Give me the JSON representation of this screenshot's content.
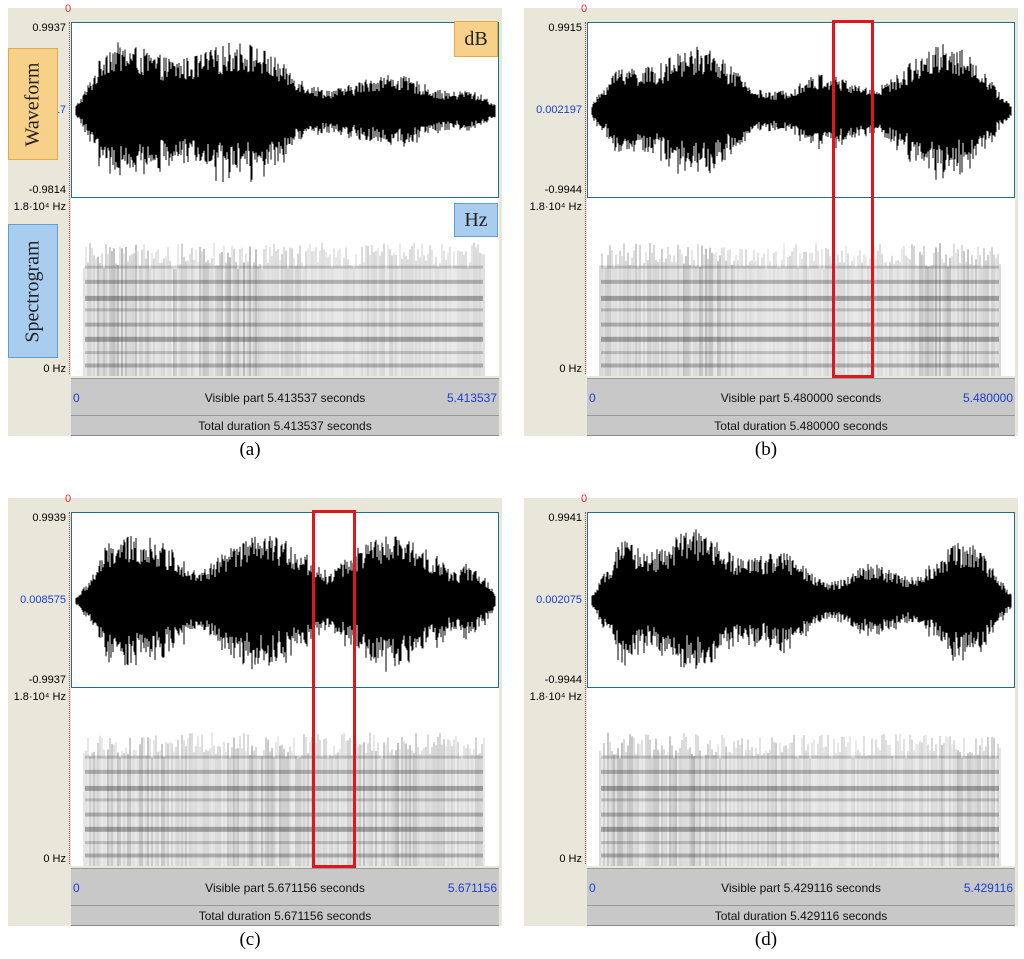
{
  "panels": {
    "a": {
      "caption": "(a)",
      "zero_marker": "0",
      "wave_max": "0.9937",
      "wave_mid": "17",
      "wave_min": "-0.9814",
      "freq_max": "1.8·10⁴ Hz",
      "freq_min": "0 Hz",
      "time_start": "0",
      "time_end": "5.413537",
      "visible_part": "Visible part 5.413537 seconds",
      "total_duration": "Total duration 5.413537 seconds",
      "waveform_tag": "Waveform",
      "spectrogram_tag": "Spectrogram",
      "db_tag": "dB",
      "hz_tag": "Hz",
      "has_highlight": false
    },
    "b": {
      "caption": "(b)",
      "zero_marker": "0",
      "wave_max": "0.9915",
      "wave_mid": "0.002197",
      "wave_min": "-0.9944",
      "freq_max": "1.8·10⁴ Hz",
      "freq_min": "0 Hz",
      "time_start": "0",
      "time_end": "5.480000",
      "visible_part": "Visible part 5.480000 seconds",
      "total_duration": "Total duration 5.480000 seconds",
      "has_highlight": true,
      "highlight_fraction": [
        0.56,
        0.66
      ]
    },
    "c": {
      "caption": "(c)",
      "zero_marker": "0",
      "wave_max": "0.9939",
      "wave_mid": "0.008575",
      "wave_min": "-0.9937",
      "freq_max": "1.8·10⁴ Hz",
      "freq_min": "0 Hz",
      "time_start": "0",
      "time_end": "5.671156",
      "visible_part": "Visible part 5.671156 seconds",
      "total_duration": "Total duration 5.671156 seconds",
      "has_highlight": true,
      "highlight_fraction": [
        0.57,
        0.67
      ]
    },
    "d": {
      "caption": "(d)",
      "zero_marker": "0",
      "wave_max": "0.9941",
      "wave_mid": "0.002075",
      "wave_min": "-0.9944",
      "freq_max": "1.8·10⁴ Hz",
      "freq_min": "0 Hz",
      "time_start": "0",
      "time_end": "5.429116",
      "visible_part": "Visible part 5.429116 seconds",
      "total_duration": "Total duration 5.429116 seconds",
      "has_highlight": false
    }
  },
  "colors": {
    "panel_bg": "#e9e7d9",
    "waveform": "#000000",
    "highlight": "#e0161d",
    "time_labels": "#1a3fd0",
    "wave_tag": "#f7d08a",
    "spec_tag": "#a9cdee"
  }
}
